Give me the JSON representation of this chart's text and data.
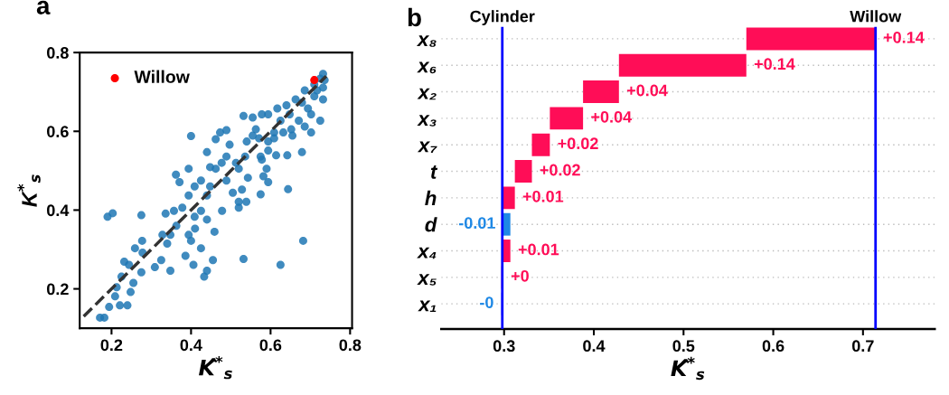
{
  "chart_data": [
    {
      "type": "scatter",
      "title": "a",
      "xlabel": "K̂$^{*}$$_{s}$",
      "ylabel": "K$^{*}$$_{s}$",
      "xlim": [
        0.12,
        0.805
      ],
      "ylim": [
        0.1,
        0.8
      ],
      "xticks": [
        0.2,
        0.4,
        0.6,
        0.8
      ],
      "yticks": [
        0.2,
        0.4,
        0.6,
        0.8
      ],
      "legend": "top left",
      "marker": "circle",
      "series": [
        {
          "type": "scatter",
          "color": "#1f77b4",
          "x": [
            0.171,
            0.182,
            0.194,
            0.19,
            0.203,
            0.275,
            0.213,
            0.209,
            0.221,
            0.24,
            0.232,
            0.244,
            0.259,
            0.277,
            0.278,
            0.255,
            0.275,
            0.248,
            0.225,
            0.309,
            0.325,
            0.348,
            0.328,
            0.336,
            0.357,
            0.362,
            0.371,
            0.394,
            0.4,
            0.386,
            0.406,
            0.425,
            0.41,
            0.455,
            0.44,
            0.433,
            0.44,
            0.448,
            0.462,
            0.473,
            0.489,
            0.459,
            0.478,
            0.378,
            0.394,
            0.409,
            0.425,
            0.44,
            0.448,
            0.462,
            0.477,
            0.489,
            0.505,
            0.513,
            0.52,
            0.543,
            0.536,
            0.528,
            0.52,
            0.52,
            0.539,
            0.363,
            0.348,
            0.409,
            0.44,
            0.425,
            0.394,
            0.4,
            0.34,
            0.532,
            0.625,
            0.682,
            0.644,
            0.575,
            0.594,
            0.582,
            0.59,
            0.575,
            0.614,
            0.642,
            0.679,
            0.532,
            0.555,
            0.578,
            0.555,
            0.54,
            0.571,
            0.594,
            0.609,
            0.625,
            0.648,
            0.671,
            0.686,
            0.702,
            0.725,
            0.694,
            0.679,
            0.71,
            0.732,
            0.732,
            0.725,
            0.732,
            0.71,
            0.686,
            0.663,
            0.64,
            0.617,
            0.594,
            0.609,
            0.632,
            0.655,
            0.594,
            0.578,
            0.489,
            0.497,
            0.563,
            0.736,
            0.717,
            0.702,
            0.652
          ],
          "values": [
            0.127,
            0.127,
            0.154,
            0.383,
            0.392,
            0.387,
            0.204,
            0.181,
            0.158,
            0.158,
            0.269,
            0.261,
            0.303,
            0.322,
            0.292,
            0.215,
            0.242,
            0.192,
            0.231,
            0.255,
            0.273,
            0.246,
            0.337,
            0.391,
            0.398,
            0.49,
            0.471,
            0.505,
            0.588,
            0.284,
            0.261,
            0.303,
            0.353,
            0.273,
            0.246,
            0.231,
            0.547,
            0.509,
            0.58,
            0.597,
            0.603,
            0.345,
            0.398,
            0.406,
            0.437,
            0.46,
            0.475,
            0.437,
            0.46,
            0.505,
            0.52,
            0.475,
            0.444,
            0.52,
            0.505,
            0.482,
            0.536,
            0.452,
            0.406,
            0.421,
            0.421,
            0.36,
            0.337,
            0.383,
            0.376,
            0.398,
            0.337,
            0.322,
            0.315,
            0.276,
            0.261,
            0.322,
            0.453,
            0.44,
            0.471,
            0.486,
            0.505,
            0.536,
            0.539,
            0.539,
            0.547,
            0.639,
            0.635,
            0.643,
            0.589,
            0.574,
            0.582,
            0.574,
            0.597,
            0.627,
            0.643,
            0.627,
            0.612,
            0.597,
            0.627,
            0.658,
            0.673,
            0.689,
            0.681,
            0.711,
            0.734,
            0.746,
            0.719,
            0.704,
            0.681,
            0.666,
            0.658,
            0.643,
            0.582,
            0.597,
            0.589,
            0.551,
            0.528,
            0.536,
            0.566,
            0.605,
            0.73,
            0.704,
            0.643,
            0.605
          ]
        },
        {
          "type": "line",
          "color": "#333333",
          "line_style": "dashed",
          "marker": "none",
          "x": [
            0.13,
            0.74
          ],
          "values": [
            0.13,
            0.74
          ]
        },
        {
          "type": "scatter",
          "name": "Willow",
          "color": "#ff0000",
          "x": [
            0.71
          ],
          "values": [
            0.73
          ]
        }
      ]
    },
    {
      "type": "bar",
      "orientation": "horizontal",
      "title": "b",
      "xlabel": "K̂$^{*}$$_{s}$",
      "xlim": [
        0.23,
        0.78
      ],
      "xticks": [
        0.3,
        0.4,
        0.5,
        0.6,
        0.7
      ],
      "grid": "y",
      "categories": [
        "x₈",
        "x₆",
        "x₂",
        "x₃",
        "x₇",
        "t",
        "h",
        "d",
        "x₄",
        "x₅",
        "x₁"
      ],
      "base": [
        0.57,
        0.428,
        0.388,
        0.351,
        0.331,
        0.312,
        0.299,
        0.307,
        0.299,
        0.297,
        0.298
      ],
      "values": [
        0.144,
        0.142,
        0.04,
        0.037,
        0.02,
        0.019,
        0.013,
        -0.008,
        0.008,
        0.002,
        -0.001
      ],
      "colors": [
        "#ff0d57",
        "#ff0d57",
        "#ff0d57",
        "#ff0d57",
        "#ff0d57",
        "#ff0d57",
        "#ff0d57",
        "#1e88e5",
        "#ff0d57",
        "#ff0d57",
        "#1e88e5"
      ],
      "value_labels": [
        "+0.14",
        "+0.14",
        "+0.04",
        "+0.04",
        "+0.02",
        "+0.02",
        "+0.01",
        "-0.01",
        "+0.01",
        "+0",
        "-0"
      ],
      "ref_lines": [
        {
          "axis": "x",
          "value": 0.298,
          "label": "Cylinder",
          "color": "#0000ff"
        },
        {
          "axis": "x",
          "value": 0.714,
          "label": "Willow",
          "color": "#0000ff"
        }
      ]
    }
  ]
}
